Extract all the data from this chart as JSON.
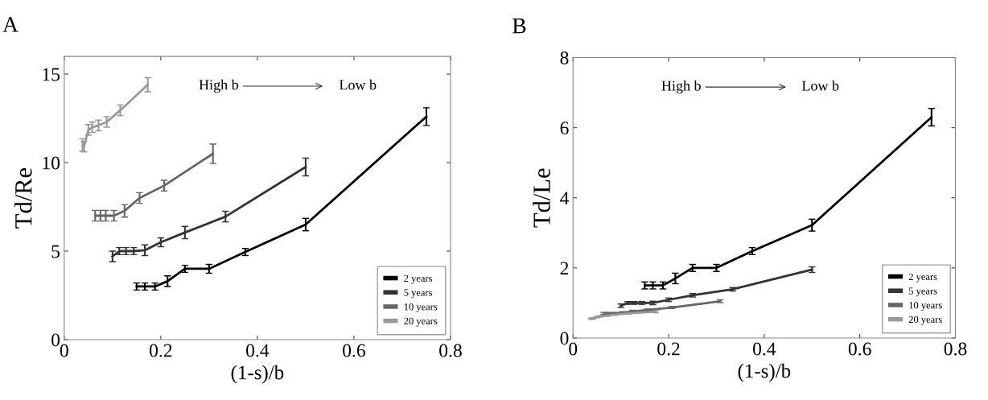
{
  "chart_data": [
    {
      "type": "line",
      "title": "A",
      "xlabel": "(1-s)/b",
      "ylabel": "Td/Re",
      "xlim": [
        0,
        0.8
      ],
      "xticks": [
        0,
        0.2,
        0.4,
        0.6,
        0.8
      ],
      "ylim": [
        0,
        16
      ],
      "yticks": [
        0,
        5,
        10,
        15
      ],
      "grid": false,
      "legend": "bottom right",
      "marker": "none",
      "line_style": "solid",
      "annotations": [
        "High b",
        "Low b"
      ],
      "series": [
        {
          "name": "2 years",
          "color": "#000000",
          "x": [
            0.15,
            0.167,
            0.188,
            0.214,
            0.25,
            0.3,
            0.375,
            0.5,
            0.75
          ],
          "values": [
            3.0,
            3.0,
            3.0,
            3.3,
            4.0,
            4.0,
            4.95,
            6.5,
            12.6
          ],
          "errors": [
            0.2,
            0.2,
            0.2,
            0.3,
            0.2,
            0.25,
            0.2,
            0.35,
            0.5
          ]
        },
        {
          "name": "5 years",
          "color": "#333333",
          "x": [
            0.1,
            0.114,
            0.128,
            0.144,
            0.167,
            0.2,
            0.25,
            0.334,
            0.5
          ],
          "values": [
            4.7,
            5.0,
            5.0,
            5.0,
            5.05,
            5.5,
            6.05,
            6.95,
            9.75
          ],
          "errors": [
            0.3,
            0.2,
            0.2,
            0.2,
            0.3,
            0.25,
            0.35,
            0.3,
            0.5
          ]
        },
        {
          "name": "10 years",
          "color": "#666666",
          "x": [
            0.064,
            0.075,
            0.086,
            0.103,
            0.125,
            0.156,
            0.207,
            0.308
          ],
          "values": [
            7.0,
            7.0,
            7.0,
            7.0,
            7.27,
            8.0,
            8.7,
            10.5
          ],
          "errors": [
            0.3,
            0.3,
            0.3,
            0.3,
            0.35,
            0.3,
            0.3,
            0.55
          ]
        },
        {
          "name": "20 years",
          "color": "#999999",
          "x": [
            0.038,
            0.041,
            0.05,
            0.058,
            0.071,
            0.088,
            0.116,
            0.173
          ],
          "values": [
            11.0,
            10.9,
            11.85,
            12.0,
            12.1,
            12.3,
            12.95,
            14.4
          ],
          "errors": [
            0.35,
            0.3,
            0.3,
            0.3,
            0.3,
            0.3,
            0.3,
            0.4
          ]
        }
      ]
    },
    {
      "type": "line",
      "title": "B",
      "xlabel": "(1-s)/b",
      "ylabel": "Td/Le",
      "xlim": [
        0,
        0.8
      ],
      "xticks": [
        0,
        0.2,
        0.4,
        0.6,
        0.8
      ],
      "ylim": [
        0,
        8
      ],
      "yticks": [
        0,
        2,
        4,
        6,
        8
      ],
      "grid": false,
      "legend": "bottom right",
      "marker": "none",
      "line_style": "solid",
      "annotations": [
        "High b",
        "Low b"
      ],
      "series": [
        {
          "name": "2 years",
          "color": "#000000",
          "x": [
            0.15,
            0.167,
            0.188,
            0.214,
            0.25,
            0.3,
            0.375,
            0.5,
            0.75
          ],
          "values": [
            1.5,
            1.5,
            1.5,
            1.7,
            2.0,
            2.0,
            2.48,
            3.22,
            6.3
          ],
          "errors": [
            0.1,
            0.1,
            0.1,
            0.15,
            0.1,
            0.1,
            0.1,
            0.17,
            0.25
          ]
        },
        {
          "name": "5 years",
          "color": "#333333",
          "x": [
            0.1,
            0.114,
            0.128,
            0.144,
            0.167,
            0.2,
            0.25,
            0.334,
            0.5
          ],
          "values": [
            0.92,
            1.0,
            1.0,
            1.0,
            1.0,
            1.09,
            1.22,
            1.39,
            1.95
          ],
          "errors": [
            0.05,
            0.04,
            0.04,
            0.04,
            0.05,
            0.05,
            0.05,
            0.05,
            0.08
          ]
        },
        {
          "name": "10 years",
          "color": "#666666",
          "x": [
            0.064,
            0.075,
            0.086,
            0.103,
            0.125,
            0.156,
            0.207,
            0.308
          ],
          "values": [
            0.7,
            0.7,
            0.7,
            0.72,
            0.76,
            0.8,
            0.87,
            1.05
          ],
          "errors": [
            0.03,
            0.03,
            0.03,
            0.03,
            0.03,
            0.03,
            0.03,
            0.04
          ]
        },
        {
          "name": "20 years",
          "color": "#999999",
          "x": [
            0.038,
            0.041,
            0.05,
            0.058,
            0.071,
            0.088,
            0.116,
            0.173
          ],
          "values": [
            0.55,
            0.56,
            0.6,
            0.62,
            0.64,
            0.67,
            0.7,
            0.75
          ],
          "errors": [
            0.02,
            0.02,
            0.02,
            0.02,
            0.02,
            0.02,
            0.02,
            0.03
          ]
        }
      ]
    }
  ]
}
